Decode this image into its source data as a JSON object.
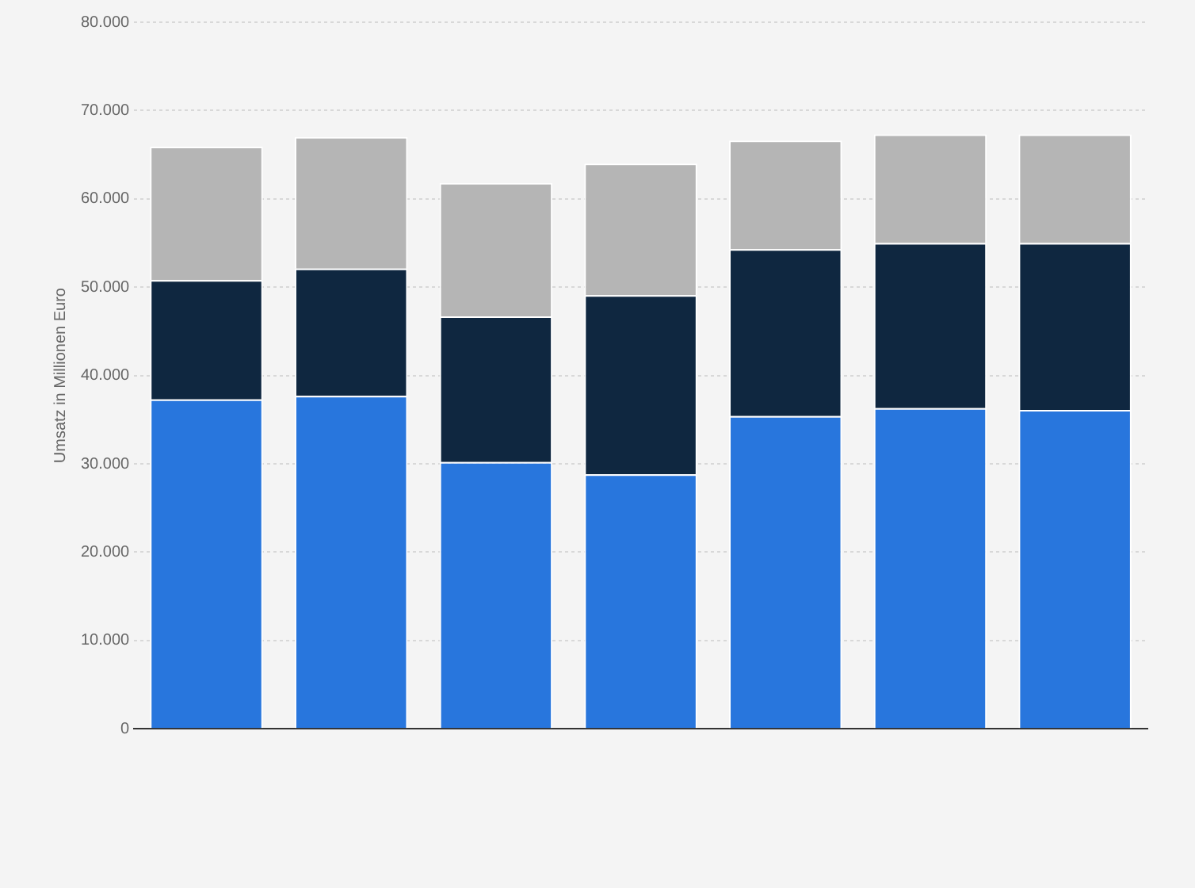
{
  "chart_data": {
    "type": "bar",
    "stacked": true,
    "ylabel": "Umsatz in Millionen Euro",
    "categories": [
      null,
      null,
      null,
      null,
      null,
      null,
      null
    ],
    "series": [
      {
        "color": "#2876dd",
        "values": [
          37300,
          37700,
          30200,
          28800,
          35400,
          36300,
          36100
        ]
      },
      {
        "color": "#0f2740",
        "values": [
          13500,
          14400,
          16500,
          20300,
          18900,
          18700,
          18900
        ]
      },
      {
        "color": "#b5b5b5",
        "values": [
          15100,
          14900,
          15100,
          14900,
          12300,
          12300,
          12300
        ]
      }
    ],
    "ylim": [
      0,
      80000
    ],
    "yticks": [
      0,
      {
        "value": 10000,
        "label": "10.000"
      },
      {
        "value": 20000,
        "label": "20.000"
      },
      {
        "value": 30000,
        "label": "30.000"
      },
      {
        "value": 40000,
        "label": "40.000"
      },
      {
        "value": 50000,
        "label": "50.000"
      },
      {
        "value": 60000,
        "label": "60.000"
      },
      {
        "value": 70000,
        "label": "70.000"
      },
      {
        "value": 80000,
        "label": "80.000"
      }
    ],
    "grid": "y",
    "legend": false
  }
}
